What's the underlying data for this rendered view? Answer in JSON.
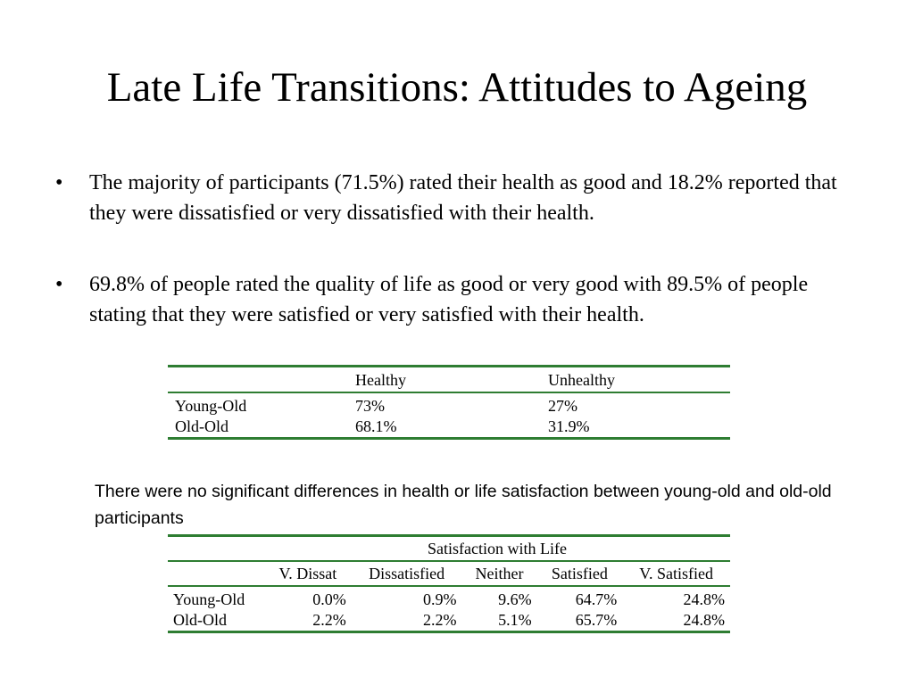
{
  "slide": {
    "title": "Late Life Transitions: Attitudes to Ageing",
    "bullet_glyph": "•",
    "bullets": [
      "The majority of participants (71.5%) rated their health as good and 18.2% reported that they were dissatisfied or very dissatisfied with their health.",
      "69.8% of people rated the quality of life as good or very good with 89.5% of people stating that they were satisfied or very satisfied with their health."
    ],
    "note": "There were no significant differences in health or life satisfaction between young-old and old-old participants"
  },
  "health_table": {
    "headers": [
      "",
      "Healthy",
      "Unhealthy"
    ],
    "rows": [
      [
        "Young-Old",
        "73%",
        "27%"
      ],
      [
        "Old-Old",
        "68.1%",
        "31.9%"
      ]
    ]
  },
  "satisfaction_table": {
    "group_header": "Satisfaction with Life",
    "headers": [
      "",
      "V. Dissat",
      "Dissatisfied",
      "Neither",
      "Satisfied",
      "V. Satisfied"
    ],
    "rows": [
      [
        "Young-Old",
        "0.0%",
        "0.9%",
        "9.6%",
        "64.7%",
        "24.8%"
      ],
      [
        "Old-Old",
        "2.2%",
        "2.2%",
        "5.1%",
        "65.7%",
        "24.8%"
      ]
    ]
  },
  "colors": {
    "rule": "#2e7d32",
    "text": "#000000",
    "background": "#ffffff"
  }
}
